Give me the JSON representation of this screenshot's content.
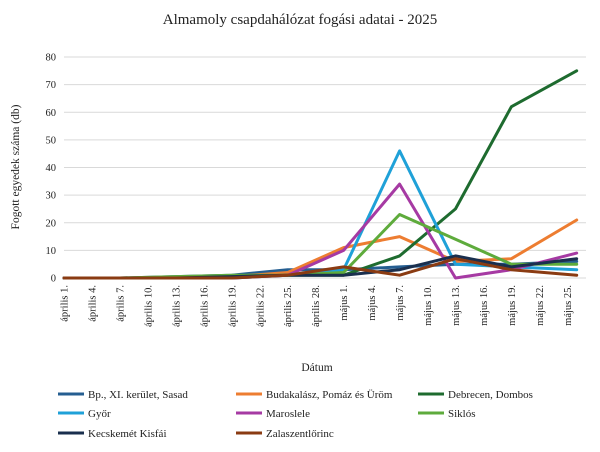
{
  "chart_data": {
    "type": "line",
    "title": "Almamoly csapdahálózat fogási adatai - 2025",
    "xlabel": "Dátum",
    "ylabel": "Fogott egyedek száma (db)",
    "ylim": [
      0,
      80
    ],
    "yticks": [
      0,
      10,
      20,
      30,
      40,
      50,
      60,
      70,
      80
    ],
    "grid": true,
    "legend_position": "bottom",
    "categories": [
      "április 1.",
      "április 4.",
      "április 7.",
      "április 10.",
      "április 13.",
      "április 16.",
      "április 19.",
      "április 22.",
      "április 25.",
      "április 28.",
      "május 1.",
      "május 4.",
      "május 7.",
      "május 10.",
      "május 13.",
      "május 16.",
      "május 19.",
      "május 22.",
      "május 25."
    ],
    "x": [
      0,
      3,
      6,
      9,
      12,
      15,
      18,
      21,
      24,
      27,
      30,
      33,
      36,
      39,
      42,
      45,
      48,
      51,
      54
    ],
    "series": [
      {
        "name": "Bp., XI. kerület, Sasad",
        "color": "#255e91",
        "x": [
          0,
          6,
          12,
          18,
          24,
          30,
          36,
          42,
          48,
          55
        ],
        "values": [
          0,
          0,
          0.5,
          1,
          3,
          3,
          4,
          5,
          5,
          6
        ]
      },
      {
        "name": "Budakalász, Pomáz és Üröm",
        "color": "#ed7d31",
        "x": [
          0,
          6,
          12,
          18,
          24,
          30,
          36,
          42,
          48,
          55
        ],
        "values": [
          0,
          0,
          0,
          0.5,
          2,
          11,
          15,
          6,
          7,
          21
        ]
      },
      {
        "name": "Debrecen, Dombos",
        "color": "#1e6b2f",
        "x": [
          0,
          6,
          12,
          18,
          24,
          30,
          36,
          42,
          48,
          55
        ],
        "values": [
          0,
          0,
          0,
          0.5,
          1,
          1,
          8,
          25,
          62,
          75
        ]
      },
      {
        "name": "Győr",
        "color": "#1fa1d8",
        "x": [
          0,
          6,
          12,
          18,
          24,
          30,
          36,
          42,
          48,
          55
        ],
        "values": [
          0,
          0,
          0,
          0,
          1,
          3,
          46,
          5,
          4,
          3
        ]
      },
      {
        "name": "Maroslele",
        "color": "#a63aa3",
        "x": [
          0,
          6,
          12,
          18,
          24,
          30,
          36,
          42,
          48,
          55
        ],
        "values": [
          0,
          0,
          0,
          0,
          1,
          10,
          34,
          0,
          3,
          9
        ]
      },
      {
        "name": "Siklós",
        "color": "#5eab3c",
        "x": [
          0,
          6,
          12,
          18,
          24,
          30,
          36,
          42,
          48,
          55
        ],
        "values": [
          0,
          0,
          0.5,
          1,
          1,
          2,
          23,
          14,
          5,
          5
        ]
      },
      {
        "name": "Kecskemét Kisfái",
        "color": "#1a2f4e",
        "x": [
          0,
          6,
          12,
          18,
          24,
          30,
          36,
          42,
          48,
          55
        ],
        "values": [
          0,
          0,
          0,
          0.5,
          1,
          1,
          3,
          8,
          4,
          7
        ]
      },
      {
        "name": "Zalaszentlőrinc",
        "color": "#8a3b12",
        "x": [
          0,
          6,
          12,
          18,
          24,
          30,
          36,
          42,
          48,
          55
        ],
        "values": [
          0,
          0,
          0,
          0,
          1,
          4,
          1,
          7,
          3,
          1
        ]
      }
    ]
  }
}
